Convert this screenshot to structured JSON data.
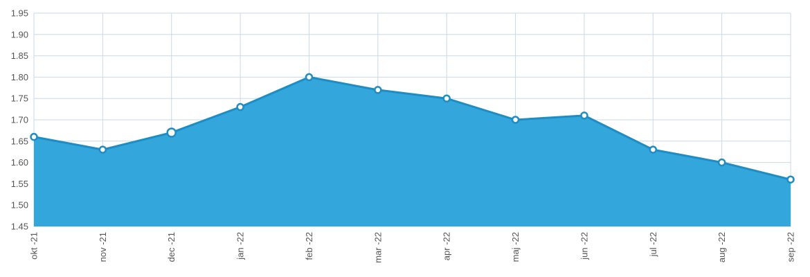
{
  "chart_data": {
    "type": "area",
    "categories": [
      "okt -21",
      "nov -21",
      "dec -21",
      "jan -22",
      "feb -22",
      "mar -22",
      "apr -22",
      "maj -22",
      "jun -22",
      "jul -22",
      "aug -22",
      "sep -22"
    ],
    "series": [
      {
        "values": [
          1.66,
          1.63,
          1.67,
          1.73,
          1.8,
          1.77,
          1.75,
          1.7,
          1.71,
          1.63,
          1.6,
          1.56
        ]
      }
    ],
    "ylim": [
      1.45,
      1.95
    ],
    "yticks": [
      "1.45",
      "1.50",
      "1.55",
      "1.60",
      "1.65",
      "1.70",
      "1.75",
      "1.80",
      "1.85",
      "1.90",
      "1.95"
    ],
    "grid": true,
    "colors": {
      "fill": "#33a6dc",
      "line": "#1f8cc4",
      "marker_fill": "#ffffff",
      "marker_stroke": "#1f8cc4",
      "grid": "#c9d9e6"
    }
  }
}
